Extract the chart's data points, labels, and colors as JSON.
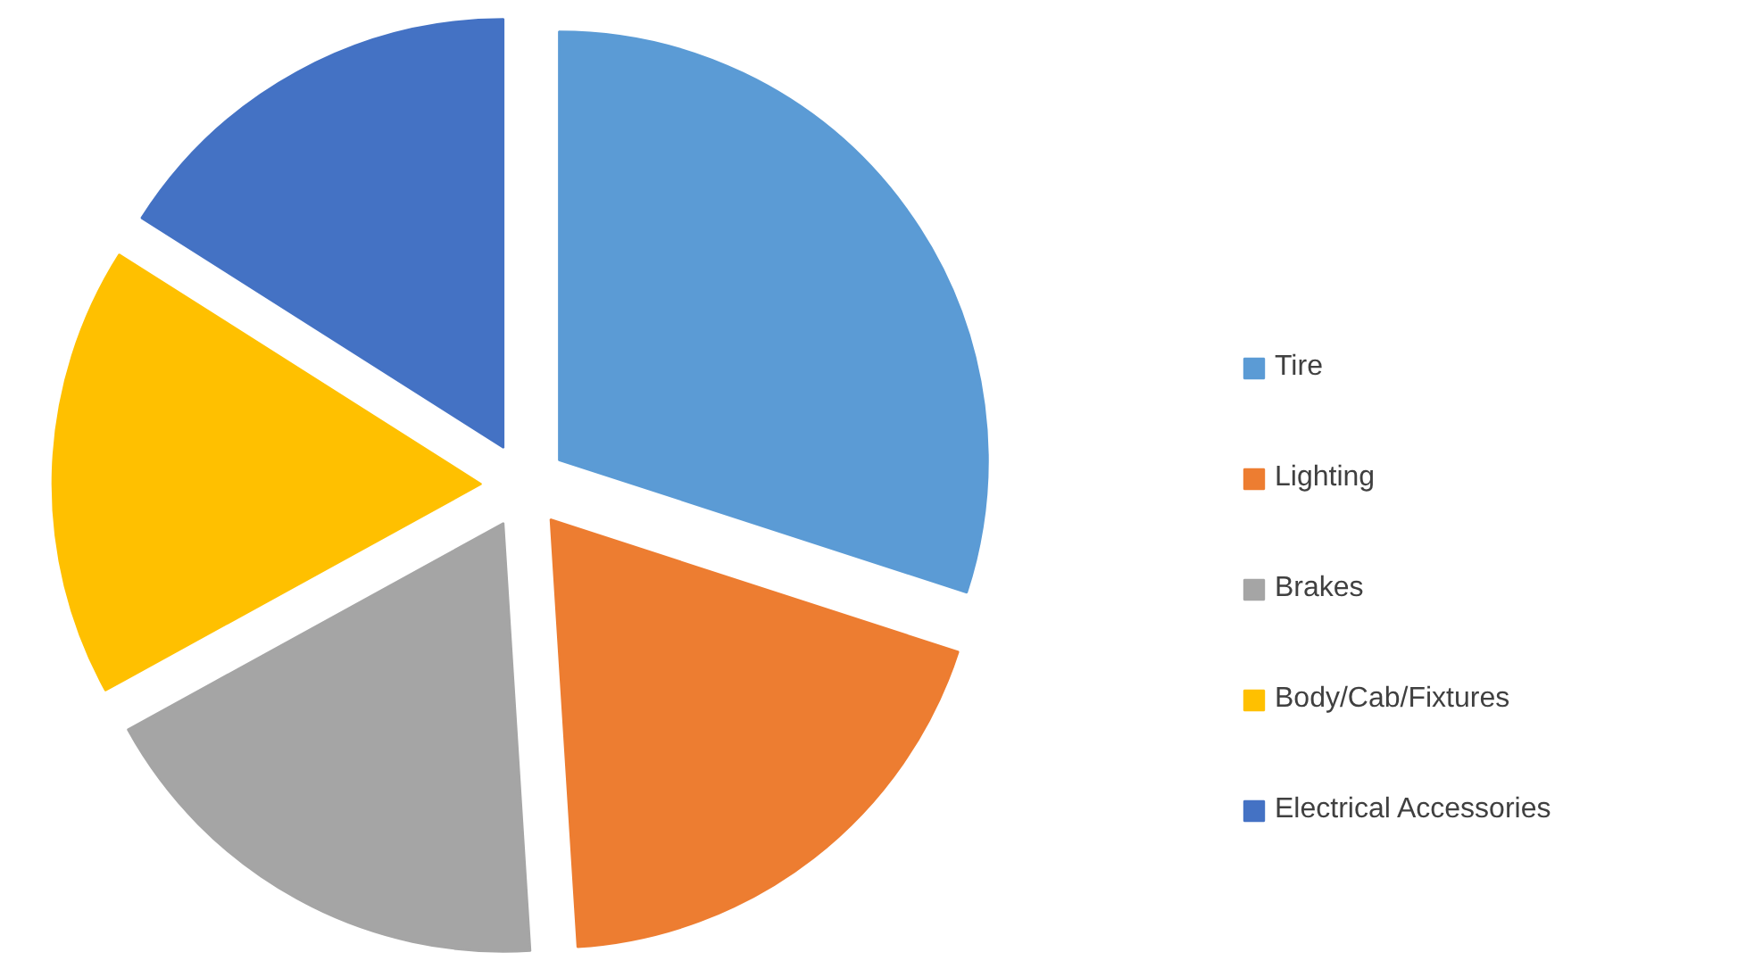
{
  "chart_data": {
    "type": "pie",
    "categories": [
      "Tire",
      "Lighting",
      "Brakes",
      "Body/Cab/Fixtures",
      "Electrical Accessories"
    ],
    "values": [
      30,
      19,
      18,
      17,
      16
    ],
    "colors": [
      "#5b9bd5",
      "#ed7d31",
      "#a5a5a5",
      "#ffc000",
      "#4472c4"
    ],
    "legend": "right"
  }
}
